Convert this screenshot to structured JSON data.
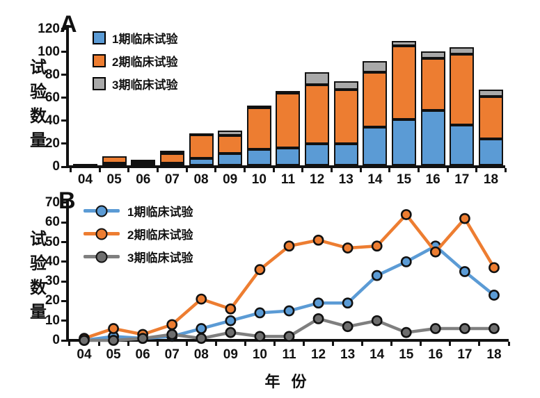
{
  "figure": {
    "panel_a_label": "A",
    "panel_b_label": "B",
    "y_axis_label": "试验数量",
    "x_axis_label": "年 份"
  },
  "colors": {
    "phase1_blue": "#5B9BD5",
    "phase2_orange": "#ED7D31",
    "phase3_gray_bar": "#A9A9A9",
    "phase3_gray_line": "#7F7F7F",
    "phase3_gray_marker": "#6E6E6E",
    "axis_black": "#111111"
  },
  "chart_data": [
    {
      "id": "panel_a",
      "type": "bar",
      "stacked": true,
      "title": "",
      "categories": [
        "04",
        "05",
        "06",
        "07",
        "08",
        "09",
        "10",
        "11",
        "12",
        "13",
        "14",
        "15",
        "16",
        "17",
        "18"
      ],
      "series": [
        {
          "name": "1期临床试验",
          "color": "#5B9BD5",
          "values": [
            0,
            2,
            1,
            2,
            6,
            10,
            14,
            15,
            19,
            19,
            33,
            40,
            48,
            35,
            23
          ]
        },
        {
          "name": "2期临床试验",
          "color": "#ED7D31",
          "values": [
            1,
            6,
            3,
            8,
            21,
            16,
            36,
            48,
            51,
            47,
            48,
            64,
            45,
            62,
            37
          ]
        },
        {
          "name": "3期临床试验",
          "color": "#A9A9A9",
          "values": [
            0,
            0,
            1,
            3,
            1,
            4,
            2,
            2,
            11,
            7,
            10,
            4,
            6,
            6,
            6
          ]
        }
      ],
      "ylabel": "试验数量",
      "xlabel": "",
      "ylim": [
        0,
        120
      ],
      "yticks": [
        0,
        20,
        40,
        60,
        80,
        100,
        120
      ],
      "grid": false,
      "legend_position": "top-left"
    },
    {
      "id": "panel_b",
      "type": "line",
      "title": "",
      "categories": [
        "04",
        "05",
        "06",
        "07",
        "08",
        "09",
        "10",
        "11",
        "12",
        "13",
        "14",
        "15",
        "16",
        "17",
        "18"
      ],
      "series": [
        {
          "name": "1期临床试验",
          "color": "#5B9BD5",
          "marker_color": "#5B9BD5",
          "values": [
            0,
            2,
            1,
            2,
            6,
            10,
            14,
            15,
            19,
            19,
            33,
            40,
            48,
            35,
            23
          ]
        },
        {
          "name": "2期临床试验",
          "color": "#ED7D31",
          "marker_color": "#ED7D31",
          "values": [
            1,
            6,
            3,
            8,
            21,
            16,
            36,
            48,
            51,
            47,
            48,
            64,
            45,
            62,
            37
          ]
        },
        {
          "name": "3期临床试验",
          "color": "#7F7F7F",
          "marker_color": "#6E6E6E",
          "values": [
            0,
            0,
            1,
            3,
            1,
            4,
            2,
            2,
            11,
            7,
            10,
            4,
            6,
            6,
            6
          ]
        }
      ],
      "ylabel": "试验数量",
      "xlabel": "年 份",
      "ylim": [
        0,
        70
      ],
      "yticks": [
        0,
        10,
        20,
        30,
        40,
        50,
        60,
        70
      ],
      "grid": false,
      "legend_position": "top-left"
    }
  ]
}
